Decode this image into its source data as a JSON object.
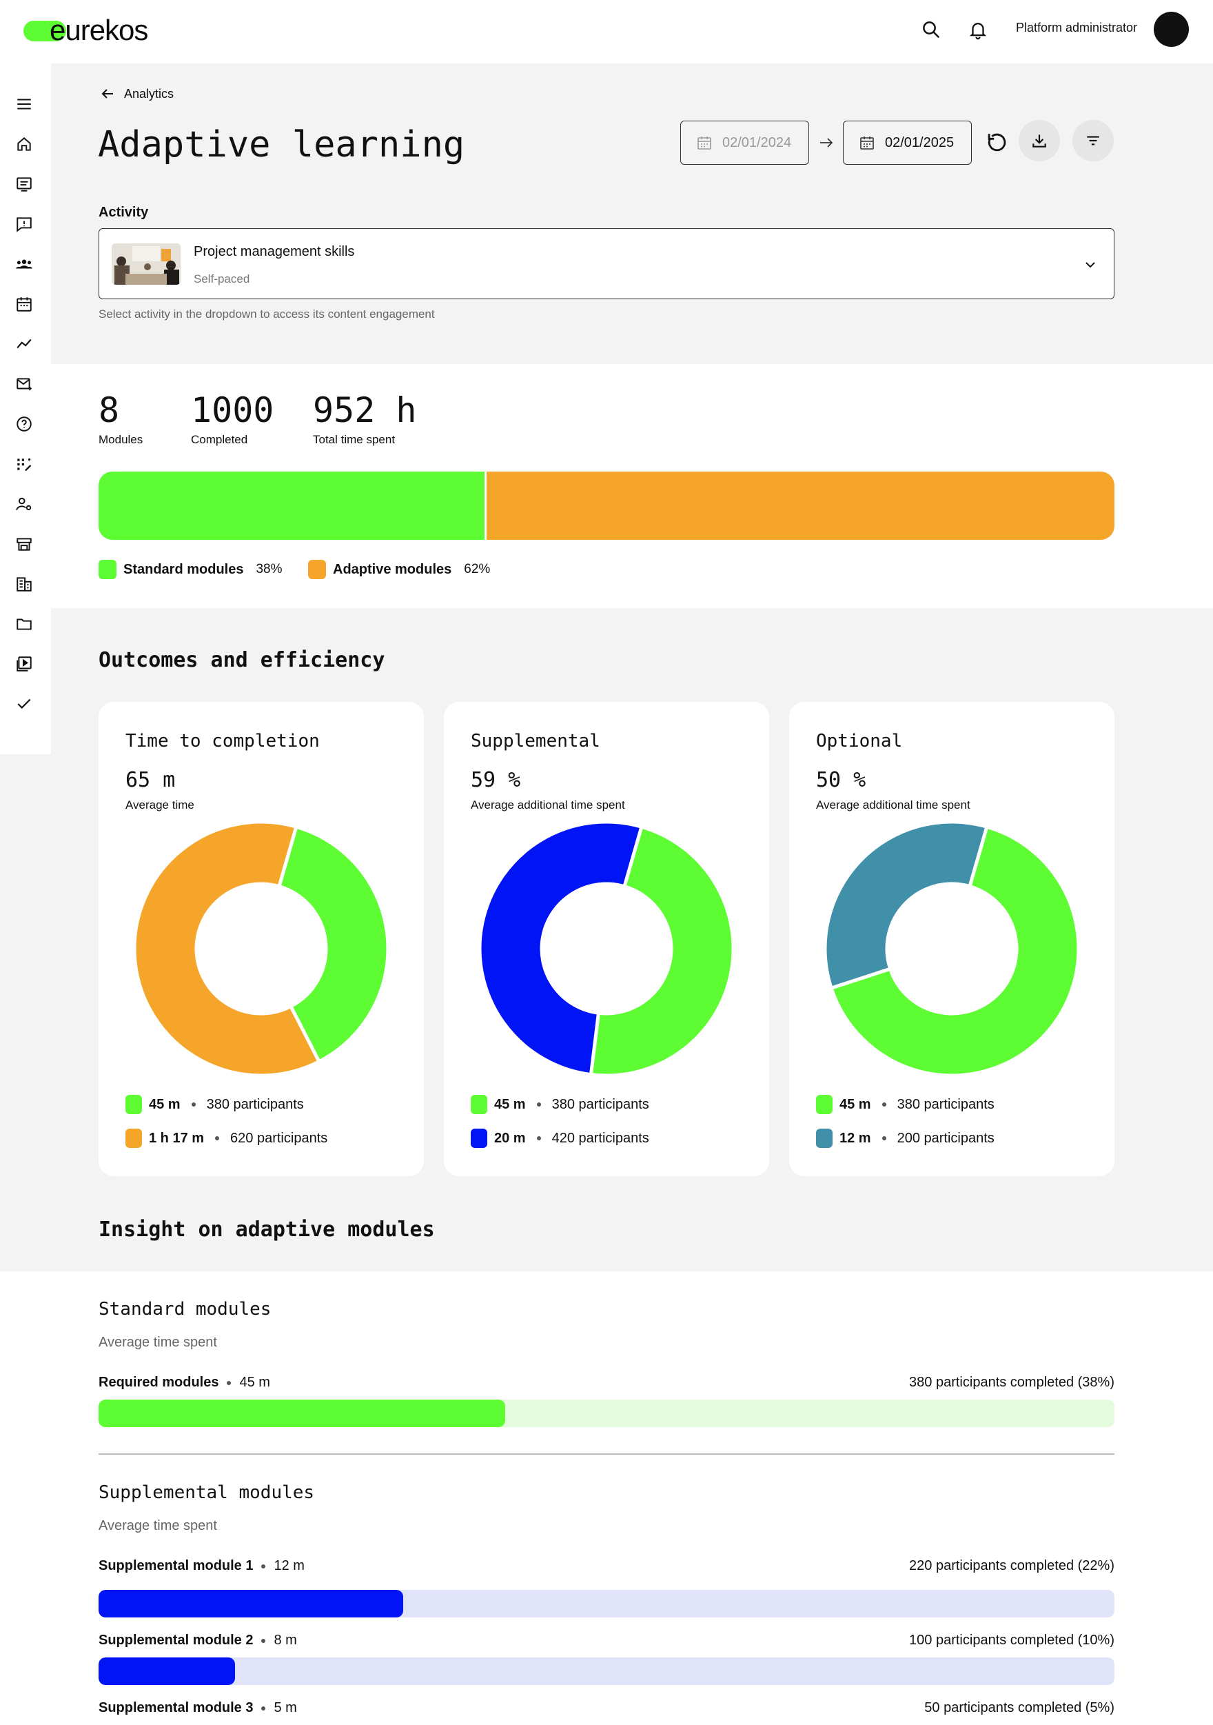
{
  "brand": {
    "logo_text": "eurekos",
    "accent": "#5efc33"
  },
  "topbar": {
    "user_name": "Platform administrator"
  },
  "breadcrumb": {
    "back_label": "Analytics"
  },
  "page": {
    "title": "Adaptive learning"
  },
  "date_range": {
    "from": "02/01/2024",
    "to": "02/01/2025"
  },
  "activity": {
    "label": "Activity",
    "name": "Project management skills",
    "type": "Self-paced",
    "help": "Select activity in the dropdown to access its content engagement"
  },
  "stats": [
    {
      "value": "8",
      "label": "Modules"
    },
    {
      "value": "1000",
      "label": "Completed"
    },
    {
      "value": "952 h",
      "label": "Total time spent"
    }
  ],
  "module_split": {
    "segments": [
      {
        "name": "Standard modules",
        "percent_label": "38%",
        "fraction": 0.38,
        "color": "#5efc33"
      },
      {
        "name": "Adaptive modules",
        "percent_label": "62%",
        "fraction": 0.62,
        "color": "#f5a62a"
      }
    ]
  },
  "outcomes": {
    "title": "Outcomes and efficiency",
    "cards": [
      {
        "title": "Time to completion",
        "value": "65 m",
        "caption": "Average time",
        "slices": [
          {
            "time": "45 m",
            "participants": "380 participants",
            "count": 380,
            "color": "#5efc33"
          },
          {
            "time": "1 h 17 m",
            "participants": "620 participants",
            "count": 620,
            "color": "#f5a62a"
          }
        ]
      },
      {
        "title": "Supplemental",
        "value": "59 %",
        "caption": "Average additional time spent",
        "slices": [
          {
            "time": "45 m",
            "participants": "380 participants",
            "count": 380,
            "color": "#5efc33"
          },
          {
            "time": "20 m",
            "participants": "420 participants",
            "count": 420,
            "color": "#0014f5"
          }
        ]
      },
      {
        "title": "Optional",
        "value": "50 %",
        "caption": "Average additional time spent",
        "slices": [
          {
            "time": "45 m",
            "participants": "380 participants",
            "count": 380,
            "color": "#5efc33"
          },
          {
            "time": "12 m",
            "participants": "200 participants",
            "count": 200,
            "color": "#3f90a8"
          }
        ]
      }
    ]
  },
  "insight": {
    "title": "Insight on adaptive modules",
    "standard": {
      "title": "Standard modules",
      "caption": "Average time spent",
      "rows": [
        {
          "name": "Required modules",
          "time": "45 m",
          "completed": "380 participants completed (38%)",
          "fraction": 0.4,
          "color": "#5efc33",
          "track": "#e5fbde"
        }
      ]
    },
    "supplemental": {
      "title": "Supplemental modules",
      "caption": "Average time spent",
      "rows": [
        {
          "name": "Supplemental module 1",
          "time": "12 m",
          "completed": "220 participants completed (22%)",
          "fraction": 0.3,
          "color": "#0014f5",
          "track": "#e0e3f9"
        },
        {
          "name": "Supplemental module 2",
          "time": "8 m",
          "completed": "100 participants completed (10%)",
          "fraction": 0.134,
          "color": "#0014f5",
          "track": "#e0e3f9"
        },
        {
          "name": "Supplemental module 3",
          "time": "5 m",
          "completed": "50 participants completed (5%)"
        }
      ]
    }
  },
  "icons": {
    "sidebar": [
      "menu-icon",
      "home-icon",
      "courses-icon",
      "feedback-icon",
      "users-icon",
      "calendar-icon",
      "analytics-icon",
      "mail-icon",
      "help-icon",
      "magic-icon",
      "user-settings-icon",
      "store-icon",
      "building-icon",
      "folder-icon",
      "media-icon",
      "check-icon"
    ]
  }
}
